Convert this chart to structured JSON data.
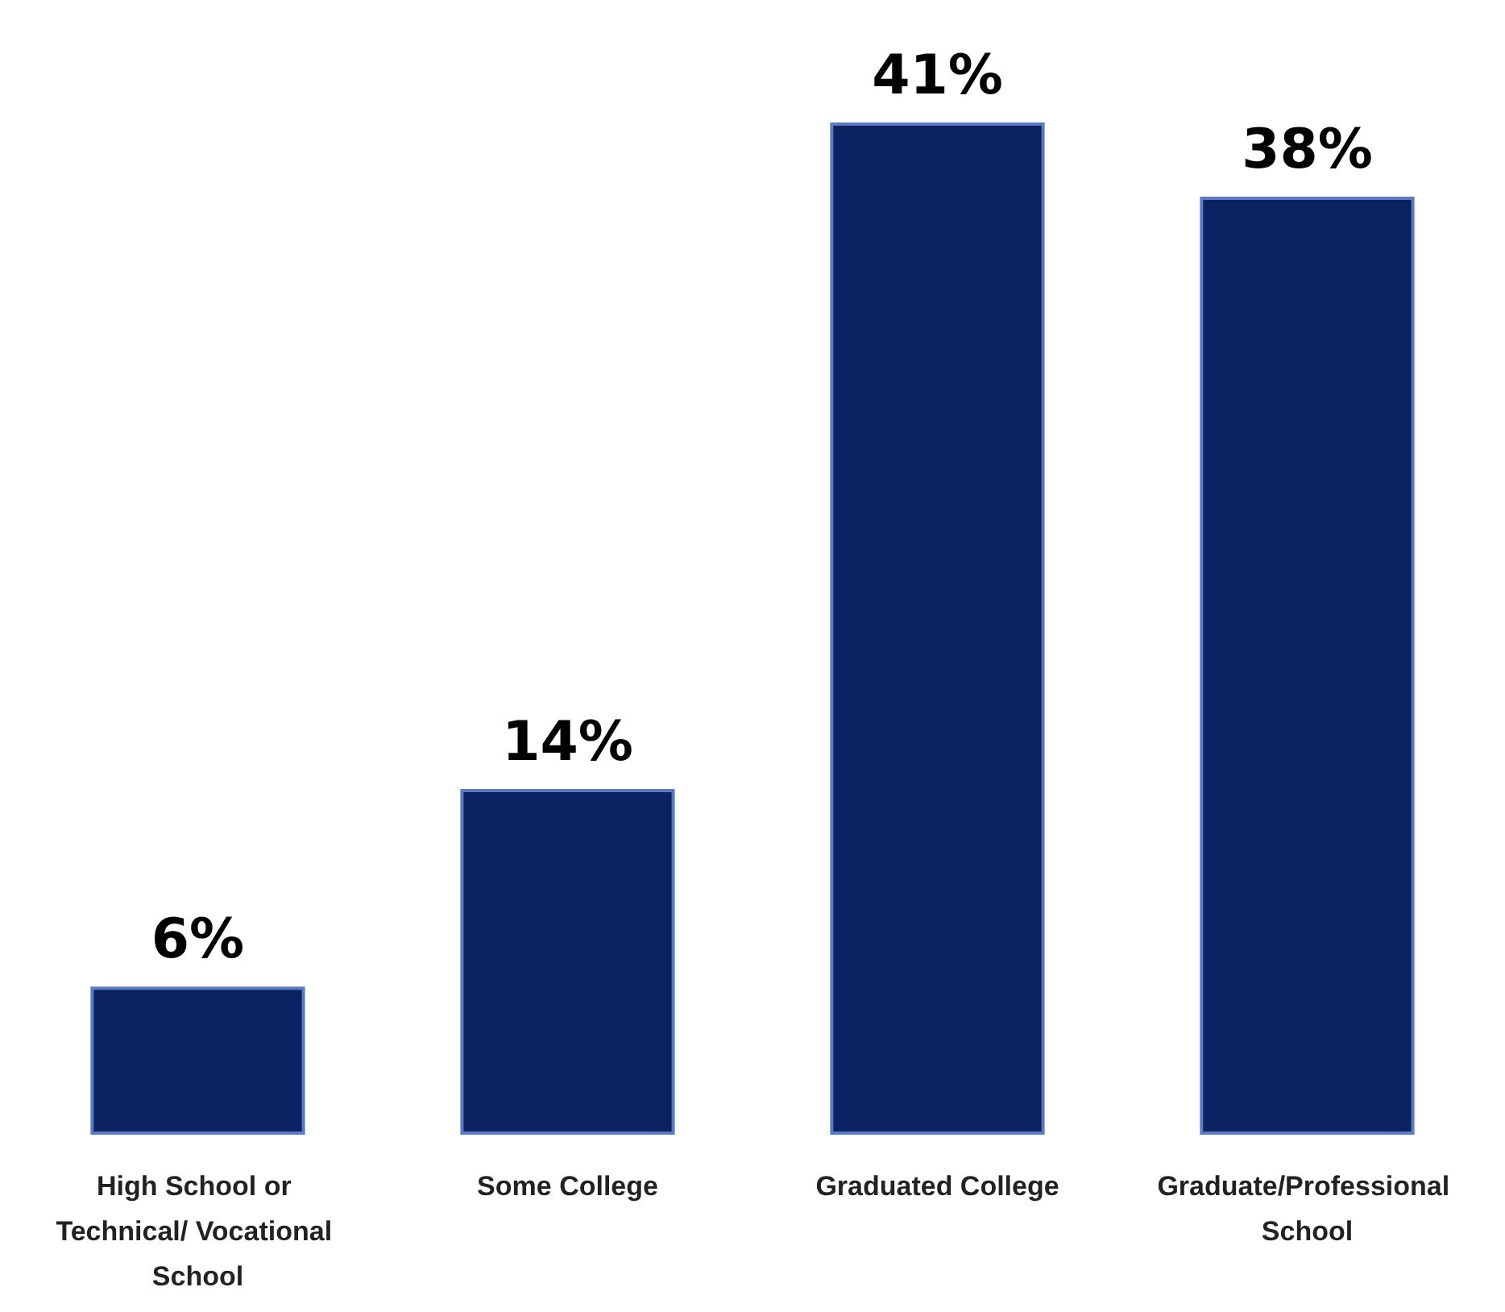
{
  "chart_data": {
    "type": "bar",
    "categories": [
      "High School or Technical/ Vocational School",
      "Some College",
      "Graduated College",
      "Graduate/Professional School"
    ],
    "values": [
      6,
      14,
      41,
      38
    ],
    "color": "#0b2363",
    "value_labels": [
      "6%",
      "14%",
      "41%",
      "38%"
    ]
  }
}
